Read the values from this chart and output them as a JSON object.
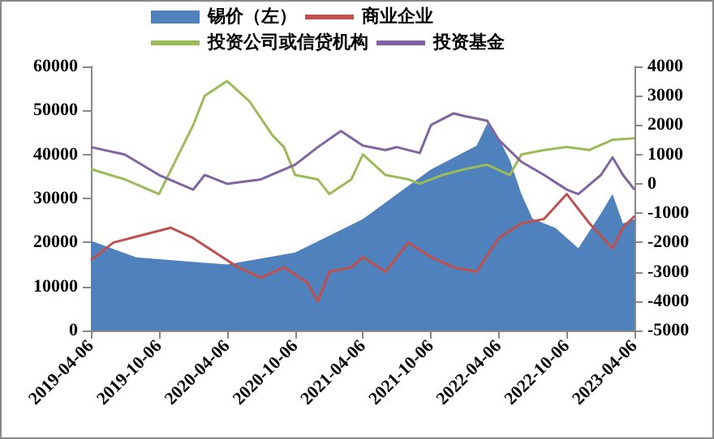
{
  "chart_data": {
    "type": "line",
    "legend": "top",
    "grid": false,
    "marker": "none",
    "line_style": "solid",
    "xlim": [
      "2019-04-06",
      "2023-04-06"
    ],
    "xticks": [
      "2019-04-06",
      "2019-10-06",
      "2020-04-06",
      "2020-10-06",
      "2021-04-06",
      "2021-10-06",
      "2022-04-06",
      "2022-10-06",
      "2023-04-06"
    ],
    "ylim": [
      0,
      60000
    ],
    "yticks": [
      0,
      10000,
      20000,
      30000,
      40000,
      50000,
      60000
    ],
    "y2lim": [
      -5000,
      4000
    ],
    "y2ticks": [
      -5000,
      -4000,
      -3000,
      -2000,
      -1000,
      0,
      1000,
      2000,
      3000,
      4000
    ],
    "series": [
      {
        "name": "锡价（左）",
        "type": "area",
        "color": "#4f81bd",
        "x": [
          "2019-04-06",
          "2019-08-06",
          "2020-04-06",
          "2020-10-06",
          "2021-04-06",
          "2021-10-06",
          "2022-02-06",
          "2022-03-06",
          "2022-04-06",
          "2022-05-06",
          "2022-06-06",
          "2022-07-06",
          "2022-09-06",
          "2022-11-06",
          "2023-01-06",
          "2023-02-06",
          "2023-03-06",
          "2023-04-06"
        ],
        "values": [
          20400,
          16600,
          15000,
          17700,
          25300,
          36600,
          42000,
          47000,
          43700,
          38700,
          31000,
          25400,
          23300,
          18700,
          26600,
          31000,
          24300,
          25300
        ]
      },
      {
        "name": "商业企业",
        "axis": "y2",
        "color": "#c0504d",
        "x": [
          "2019-04-06",
          "2019-06-06",
          "2019-09-06",
          "2019-11-06",
          "2020-01-06",
          "2020-03-06",
          "2020-05-06",
          "2020-07-06",
          "2020-09-06",
          "2020-11-06",
          "2020-12-06",
          "2021-01-06",
          "2021-03-06",
          "2021-04-06",
          "2021-06-06",
          "2021-08-06",
          "2021-10-06",
          "2021-12-06",
          "2022-02-06",
          "2022-04-06",
          "2022-06-06",
          "2022-08-06",
          "2022-10-06",
          "2022-12-06",
          "2023-02-06",
          "2023-03-06",
          "2023-04-06"
        ],
        "values": [
          -2600,
          -2000,
          -1700,
          -1500,
          -1850,
          -2350,
          -2850,
          -3200,
          -2850,
          -3350,
          -4000,
          -3000,
          -2850,
          -2500,
          -3000,
          -2000,
          -2500,
          -2850,
          -3000,
          -1850,
          -1350,
          -1200,
          -350,
          -1350,
          -2200,
          -1500,
          -1100
        ]
      },
      {
        "name": "投资公司或信贷机构",
        "axis": "y2",
        "color": "#9bbb59",
        "x": [
          "2019-04-06",
          "2019-07-06",
          "2019-10-06",
          "2020-01-06",
          "2020-02-06",
          "2020-04-06",
          "2020-06-06",
          "2020-08-06",
          "2020-09-06",
          "2020-10-06",
          "2020-12-06",
          "2021-01-06",
          "2021-03-06",
          "2021-04-06",
          "2021-06-06",
          "2021-08-06",
          "2021-09-06",
          "2021-11-06",
          "2022-01-06",
          "2022-03-06",
          "2022-05-06",
          "2022-06-06",
          "2022-08-06",
          "2022-10-06",
          "2022-12-06",
          "2023-02-06",
          "2023-04-06"
        ],
        "values": [
          500,
          150,
          -350,
          2000,
          3000,
          3500,
          2800,
          1650,
          1250,
          300,
          150,
          -350,
          150,
          1000,
          300,
          150,
          0,
          300,
          500,
          650,
          300,
          1000,
          1150,
          1250,
          1150,
          1500,
          1550
        ]
      },
      {
        "name": "投资基金",
        "axis": "y2",
        "color": "#8064a2",
        "x": [
          "2019-04-06",
          "2019-07-06",
          "2019-10-06",
          "2020-01-06",
          "2020-02-06",
          "2020-04-06",
          "2020-07-06",
          "2020-10-06",
          "2020-12-06",
          "2021-02-06",
          "2021-04-06",
          "2021-06-06",
          "2021-07-06",
          "2021-09-06",
          "2021-10-06",
          "2021-12-06",
          "2022-01-06",
          "2022-03-06",
          "2022-04-06",
          "2022-06-06",
          "2022-08-06",
          "2022-10-06",
          "2022-11-06",
          "2023-01-06",
          "2023-02-06",
          "2023-03-06",
          "2023-04-06"
        ],
        "values": [
          1250,
          1000,
          300,
          -200,
          300,
          0,
          150,
          650,
          1250,
          1800,
          1300,
          1150,
          1250,
          1050,
          2000,
          2400,
          2300,
          2150,
          1500,
          750,
          300,
          -200,
          -350,
          300,
          900,
          300,
          -200
        ]
      }
    ]
  }
}
